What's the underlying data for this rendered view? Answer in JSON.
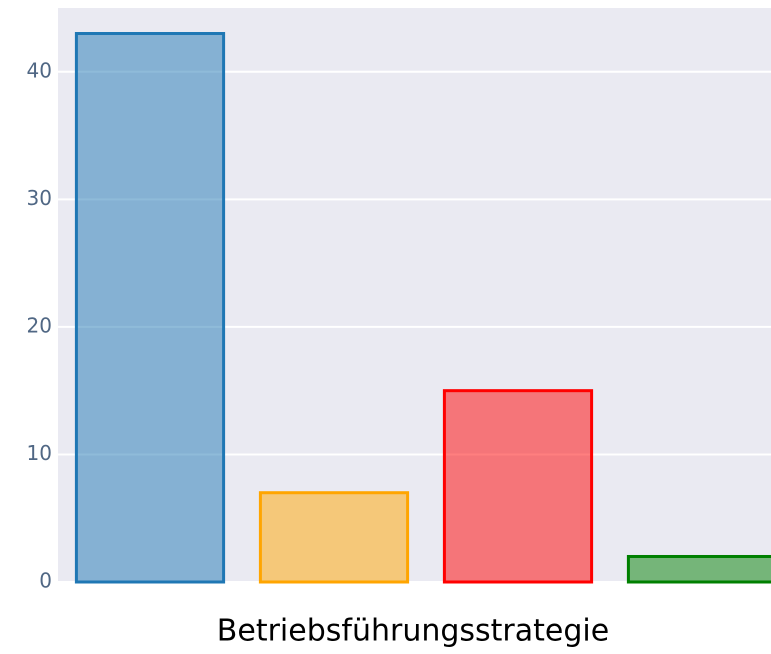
{
  "chart_data": {
    "type": "bar",
    "x_label": "Betriebsführungsstrategie",
    "categories": [
      null,
      null,
      null,
      null
    ],
    "values": [
      43,
      7,
      15,
      2
    ],
    "colors": [
      "#1f77b4",
      "#ffa500",
      "#ff0000",
      "#008000"
    ],
    "ylim": [
      0,
      45
    ],
    "yticks": [
      0,
      10,
      20,
      30,
      40
    ],
    "grid": true
  }
}
